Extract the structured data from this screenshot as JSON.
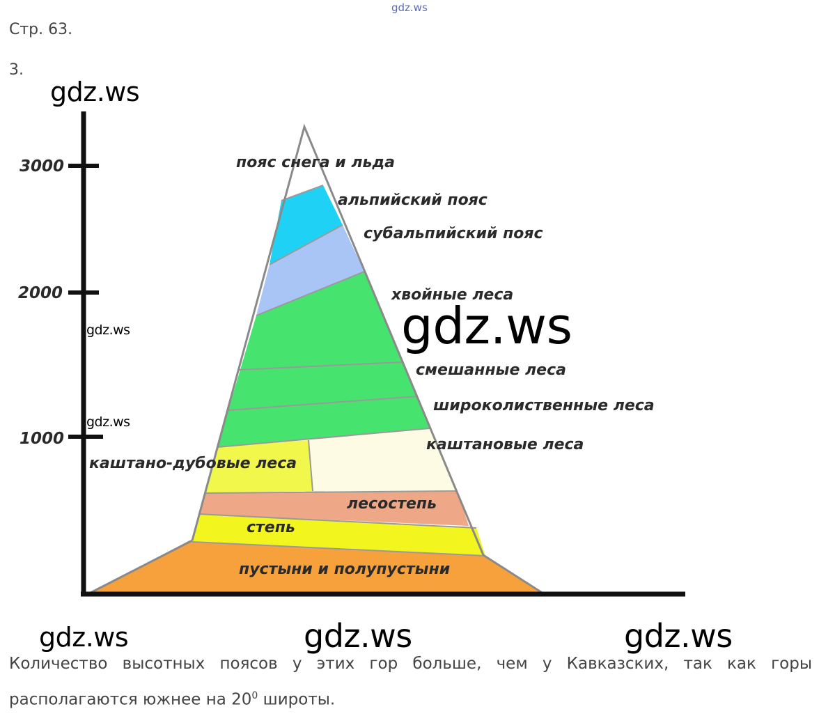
{
  "header": {
    "watermark_top": "gdz.ws",
    "page_label": "Стр. 63.",
    "task_number": "3."
  },
  "watermarks": [
    "gdz.ws",
    "gdz.ws",
    "gdz.ws",
    "gdz.ws",
    "gdz.ws",
    "gdz.ws",
    "gdz.ws"
  ],
  "diagram": {
    "axis_ticks": [
      "3000",
      "2000",
      "1000"
    ],
    "belts": {
      "snow": "пояс снега и льда",
      "alpine": "альпийский пояс",
      "subalpine": "субальпийский пояс",
      "conifer": "хвойные леса",
      "mixed": "смешанные леса",
      "broadleaf": "широколиственные леса",
      "chestnut": "каштановые леса",
      "chestnut_oak": "каштано-дубовые леса",
      "forest_steppe": "лесостепь",
      "steppe": "степь",
      "desert": "пустыни и полупустыни"
    },
    "colors": {
      "snow": "#ffffff",
      "alpine": "#1fd2f5",
      "subalpine": "#a9c5f5",
      "forest": "#47e36f",
      "chestnut": "#fdfbe4",
      "chestnut_oak": "#f2f74c",
      "forest_steppe": "#eea888",
      "steppe": "#f3f51e",
      "desert": "#f7a13c"
    }
  },
  "answer": {
    "text_before": "Количество высотных поясов у этих гор больше, чем у Кавказских, так как горы располагаются южнее на 20",
    "superscript": "0",
    "text_after": " широты."
  }
}
